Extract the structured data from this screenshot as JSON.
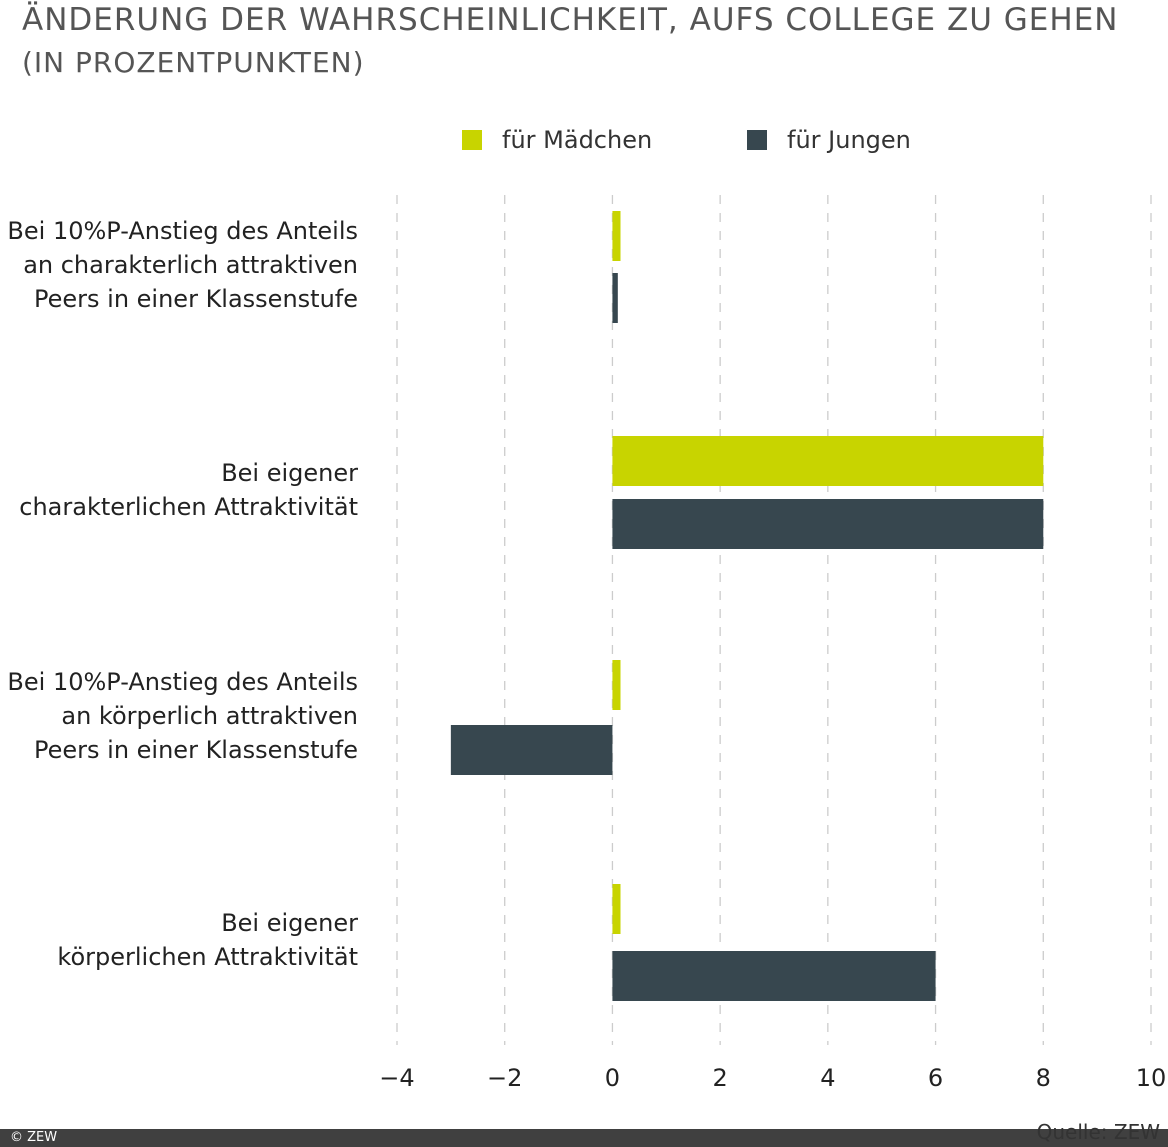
{
  "chart_data": {
    "type": "bar",
    "orientation": "horizontal",
    "title": "ÄNDERUNG DER WAHRSCHEINLICHKEIT, AUFS COLLEGE ZU GEHEN",
    "subtitle": "(IN PROZENTPUNKTEN)",
    "categories": [
      "Bei 10%P-Anstieg des Anteils\nan charakterlich attraktiven\nPeers in einer Klassenstufe",
      "Bei eigener\ncharakterlichen Attraktivität",
      "Bei 10%P-Anstieg des Anteils\nan körperlich attraktiven\nPeers in einer Klassenstufe",
      "Bei eigener\nkörperlichen Attraktivität"
    ],
    "series": [
      {
        "name": "für Mädchen",
        "color": "#c8d400",
        "values": [
          0.15,
          8,
          0.15,
          0.15
        ]
      },
      {
        "name": "für Jungen",
        "color": "#37474f",
        "values": [
          0.1,
          8,
          -3,
          6
        ]
      }
    ],
    "xlim": [
      -4,
      10
    ],
    "xticks": [
      "−4",
      "−2",
      "0",
      "2",
      "4",
      "6",
      "8",
      "10"
    ],
    "xtick_values": [
      -4,
      -2,
      0,
      2,
      4,
      6,
      8,
      10
    ],
    "grid": "vertical dashed",
    "legend": "top"
  },
  "footer": {
    "copyright": "© ZEW",
    "source": "Quelle: ZEW"
  }
}
